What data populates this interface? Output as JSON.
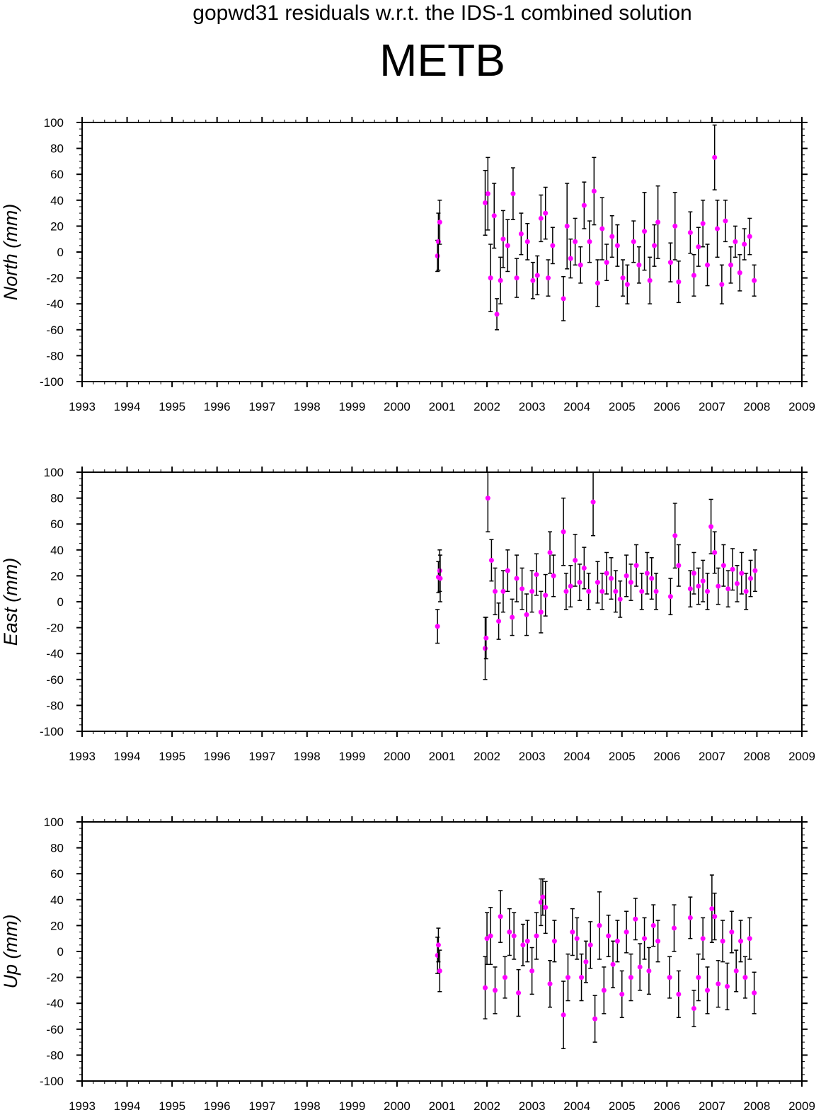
{
  "header": {
    "title": "gopwd31 residuals w.r.t. the IDS-1 combined solution",
    "station": "METB"
  },
  "colors": {
    "point": "#ff00ff",
    "error_bar": "#000000",
    "axis": "#000000",
    "background": "#ffffff"
  },
  "chart_data": [
    {
      "type": "scatter",
      "component": "North",
      "ylabel": "North (mm)",
      "xlim": [
        1993,
        2009
      ],
      "ylim": [
        -100,
        100
      ],
      "xticks": [
        1993,
        1994,
        1995,
        1996,
        1997,
        1998,
        1999,
        2000,
        2001,
        2002,
        2003,
        2004,
        2005,
        2006,
        2007,
        2008,
        2009
      ],
      "yticks": [
        -100,
        -80,
        -60,
        -40,
        -20,
        0,
        20,
        40,
        60,
        80,
        100
      ],
      "grid": false,
      "series": [
        {
          "x": [
            2000.9,
            2000.92,
            2000.95,
            2001.96,
            2002.02,
            2002.08,
            2002.16,
            2002.22,
            2002.3,
            2002.36,
            2002.46,
            2002.58,
            2002.66,
            2002.76,
            2002.9,
            2003.02,
            2003.12,
            2003.2,
            2003.3,
            2003.36,
            2003.46,
            2003.7,
            2003.78,
            2003.86,
            2003.96,
            2004.08,
            2004.16,
            2004.28,
            2004.38,
            2004.46,
            2004.56,
            2004.66,
            2004.78,
            2004.9,
            2005.02,
            2005.12,
            2005.26,
            2005.38,
            2005.5,
            2005.62,
            2005.72,
            2005.8,
            2006.08,
            2006.18,
            2006.26,
            2006.52,
            2006.6,
            2006.7,
            2006.8,
            2006.9,
            2007.06,
            2007.12,
            2007.22,
            2007.3,
            2007.42,
            2007.52,
            2007.62,
            2007.72,
            2007.84,
            2007.94
          ],
          "y": [
            -3,
            8,
            23,
            38,
            45,
            -20,
            28,
            -48,
            -22,
            10,
            5,
            45,
            -20,
            14,
            8,
            -22,
            -18,
            26,
            30,
            -20,
            5,
            -36,
            20,
            -5,
            8,
            -10,
            36,
            8,
            47,
            -24,
            18,
            -8,
            12,
            5,
            -20,
            -25,
            8,
            -10,
            16,
            -22,
            5,
            23,
            -8,
            20,
            -23,
            15,
            -18,
            4,
            22,
            -10,
            73,
            18,
            -25,
            24,
            -10,
            8,
            -16,
            6,
            12,
            -22
          ],
          "err": [
            12,
            22,
            17,
            25,
            28,
            26,
            25,
            12,
            18,
            22,
            20,
            20,
            15,
            16,
            14,
            14,
            15,
            18,
            20,
            14,
            14,
            17,
            33,
            15,
            18,
            14,
            18,
            16,
            26,
            18,
            24,
            14,
            16,
            16,
            14,
            15,
            16,
            14,
            30,
            18,
            16,
            28,
            15,
            26,
            16,
            16,
            16,
            15,
            18,
            16,
            25,
            22,
            15,
            16,
            14,
            12,
            14,
            12,
            14,
            12
          ]
        }
      ]
    },
    {
      "type": "scatter",
      "component": "East",
      "ylabel": "East (mm)",
      "xlim": [
        1993,
        2009
      ],
      "ylim": [
        -100,
        100
      ],
      "xticks": [
        1993,
        1994,
        1995,
        1996,
        1997,
        1998,
        1999,
        2000,
        2001,
        2002,
        2003,
        2004,
        2005,
        2006,
        2007,
        2008,
        2009
      ],
      "yticks": [
        -100,
        -80,
        -60,
        -40,
        -20,
        0,
        20,
        40,
        60,
        80,
        100
      ],
      "grid": false,
      "series": [
        {
          "x": [
            2000.9,
            2000.92,
            2000.95,
            2000.96,
            2001.96,
            2001.98,
            2002.02,
            2002.1,
            2002.18,
            2002.26,
            2002.36,
            2002.46,
            2002.56,
            2002.66,
            2002.78,
            2002.88,
            2003.0,
            2003.1,
            2003.2,
            2003.3,
            2003.4,
            2003.48,
            2003.7,
            2003.76,
            2003.86,
            2003.96,
            2004.06,
            2004.16,
            2004.26,
            2004.36,
            2004.46,
            2004.56,
            2004.66,
            2004.76,
            2004.86,
            2004.96,
            2005.1,
            2005.2,
            2005.32,
            2005.44,
            2005.56,
            2005.66,
            2005.76,
            2006.08,
            2006.18,
            2006.26,
            2006.52,
            2006.6,
            2006.7,
            2006.8,
            2006.9,
            2006.98,
            2007.06,
            2007.14,
            2007.26,
            2007.36,
            2007.46,
            2007.56,
            2007.66,
            2007.76,
            2007.86,
            2007.96
          ],
          "y": [
            -19,
            19,
            24,
            18,
            -36,
            -28,
            80,
            32,
            8,
            -15,
            8,
            24,
            -12,
            18,
            10,
            -10,
            8,
            21,
            -8,
            5,
            38,
            20,
            54,
            8,
            12,
            32,
            15,
            26,
            8,
            77,
            15,
            8,
            22,
            18,
            8,
            2,
            20,
            15,
            28,
            8,
            22,
            18,
            8,
            4,
            51,
            28,
            10,
            22,
            12,
            16,
            8,
            58,
            38,
            12,
            28,
            10,
            25,
            14,
            22,
            8,
            18,
            24
          ],
          "err": [
            13,
            12,
            16,
            18,
            24,
            16,
            26,
            16,
            18,
            14,
            16,
            16,
            14,
            18,
            16,
            16,
            16,
            16,
            16,
            16,
            16,
            16,
            26,
            14,
            16,
            20,
            14,
            16,
            14,
            26,
            16,
            14,
            16,
            16,
            16,
            14,
            16,
            14,
            16,
            14,
            16,
            16,
            14,
            14,
            25,
            16,
            14,
            16,
            14,
            16,
            14,
            21,
            16,
            14,
            16,
            14,
            16,
            14,
            16,
            14,
            14,
            16
          ]
        }
      ]
    },
    {
      "type": "scatter",
      "component": "Up",
      "ylabel": "Up (mm)",
      "xlim": [
        1993,
        2009
      ],
      "ylim": [
        -100,
        100
      ],
      "xticks": [
        1993,
        1994,
        1995,
        1996,
        1997,
        1998,
        1999,
        2000,
        2001,
        2002,
        2003,
        2004,
        2005,
        2006,
        2007,
        2008,
        2009
      ],
      "yticks": [
        -100,
        -80,
        -60,
        -40,
        -20,
        0,
        20,
        40,
        60,
        80,
        100
      ],
      "grid": false,
      "series": [
        {
          "x": [
            2000.9,
            2000.92,
            2000.95,
            2001.96,
            2002.0,
            2002.08,
            2002.18,
            2002.3,
            2002.4,
            2002.5,
            2002.6,
            2002.7,
            2002.8,
            2002.9,
            2003.0,
            2003.1,
            2003.2,
            2003.24,
            2003.3,
            2003.4,
            2003.5,
            2003.7,
            2003.8,
            2003.9,
            2004.0,
            2004.1,
            2004.2,
            2004.3,
            2004.4,
            2004.5,
            2004.6,
            2004.7,
            2004.8,
            2004.9,
            2005.0,
            2005.1,
            2005.2,
            2005.3,
            2005.4,
            2005.5,
            2005.6,
            2005.7,
            2005.8,
            2006.06,
            2006.16,
            2006.26,
            2006.52,
            2006.6,
            2006.7,
            2006.8,
            2006.9,
            2007.0,
            2007.06,
            2007.14,
            2007.24,
            2007.34,
            2007.44,
            2007.54,
            2007.64,
            2007.74,
            2007.84,
            2007.94
          ],
          "y": [
            -3,
            5,
            -15,
            -28,
            10,
            12,
            -30,
            27,
            -20,
            15,
            12,
            -32,
            5,
            8,
            -15,
            12,
            38,
            42,
            34,
            -25,
            8,
            -49,
            -20,
            15,
            10,
            -20,
            -8,
            5,
            -52,
            20,
            -30,
            12,
            -10,
            8,
            -33,
            15,
            -20,
            25,
            -12,
            10,
            -15,
            20,
            8,
            -20,
            18,
            -33,
            26,
            -44,
            -20,
            10,
            -30,
            33,
            27,
            -25,
            8,
            -27,
            15,
            -15,
            8,
            -20,
            10,
            -32
          ],
          "err": [
            14,
            13,
            16,
            24,
            20,
            22,
            18,
            20,
            16,
            18,
            18,
            18,
            16,
            16,
            18,
            18,
            18,
            14,
            20,
            18,
            16,
            26,
            18,
            18,
            16,
            18,
            16,
            18,
            18,
            26,
            18,
            16,
            18,
            16,
            18,
            16,
            18,
            16,
            18,
            16,
            18,
            16,
            16,
            16,
            18,
            18,
            16,
            14,
            18,
            16,
            18,
            26,
            18,
            18,
            16,
            18,
            16,
            16,
            16,
            16,
            16,
            16
          ]
        }
      ]
    }
  ]
}
